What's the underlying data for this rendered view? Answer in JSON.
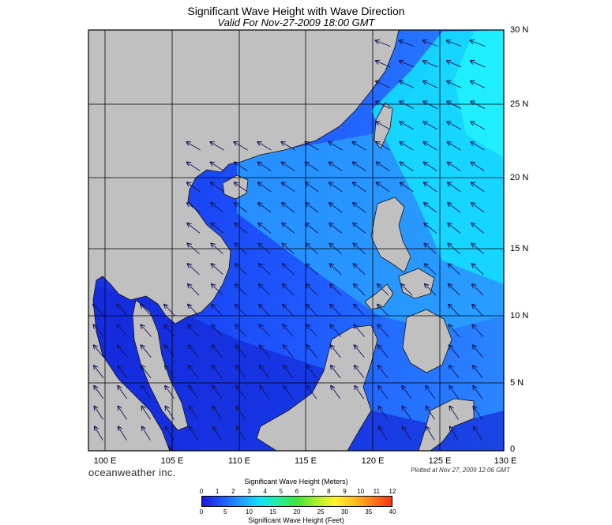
{
  "title": "Significant Wave Height with Wave Direction",
  "subtitle": "Valid For Nov-27-2009 18:00 GMT",
  "brand": "oceanweather inc.",
  "plotted": "Plotted at Nov 27, 2009 12:06 GMT",
  "lat_labels": [
    "30 N",
    "25 N",
    "20 N",
    "15 N",
    "10 N",
    "5 N",
    "0"
  ],
  "lon_labels": [
    "100 E",
    "105 E",
    "110 E",
    "115 E",
    "120 E",
    "125 E",
    "130 E"
  ],
  "scale": {
    "title": "Significant Wave Height (Meters)",
    "footer": "Significant Wave Height (Feet)",
    "meter_ticks": [
      "0",
      "1",
      "2",
      "3",
      "4",
      "5",
      "6",
      "7",
      "8",
      "9",
      "10",
      "11",
      "12"
    ],
    "feet_ticks": [
      "0",
      "5",
      "10",
      "15",
      "20",
      "25",
      "30",
      "35",
      "40"
    ],
    "colors": [
      "#1a18d8",
      "#1f55ff",
      "#1f9aff",
      "#12e0ff",
      "#22f0a0",
      "#3ee23a",
      "#a8f02a",
      "#fff42a",
      "#ffc020",
      "#ff7a18",
      "#ff3010"
    ]
  },
  "colors": {
    "land": "#c0c0c0",
    "sea_low": "#1f3cf0",
    "sea_high": "#19e4ff",
    "arrow": "#1a1a6a"
  }
}
